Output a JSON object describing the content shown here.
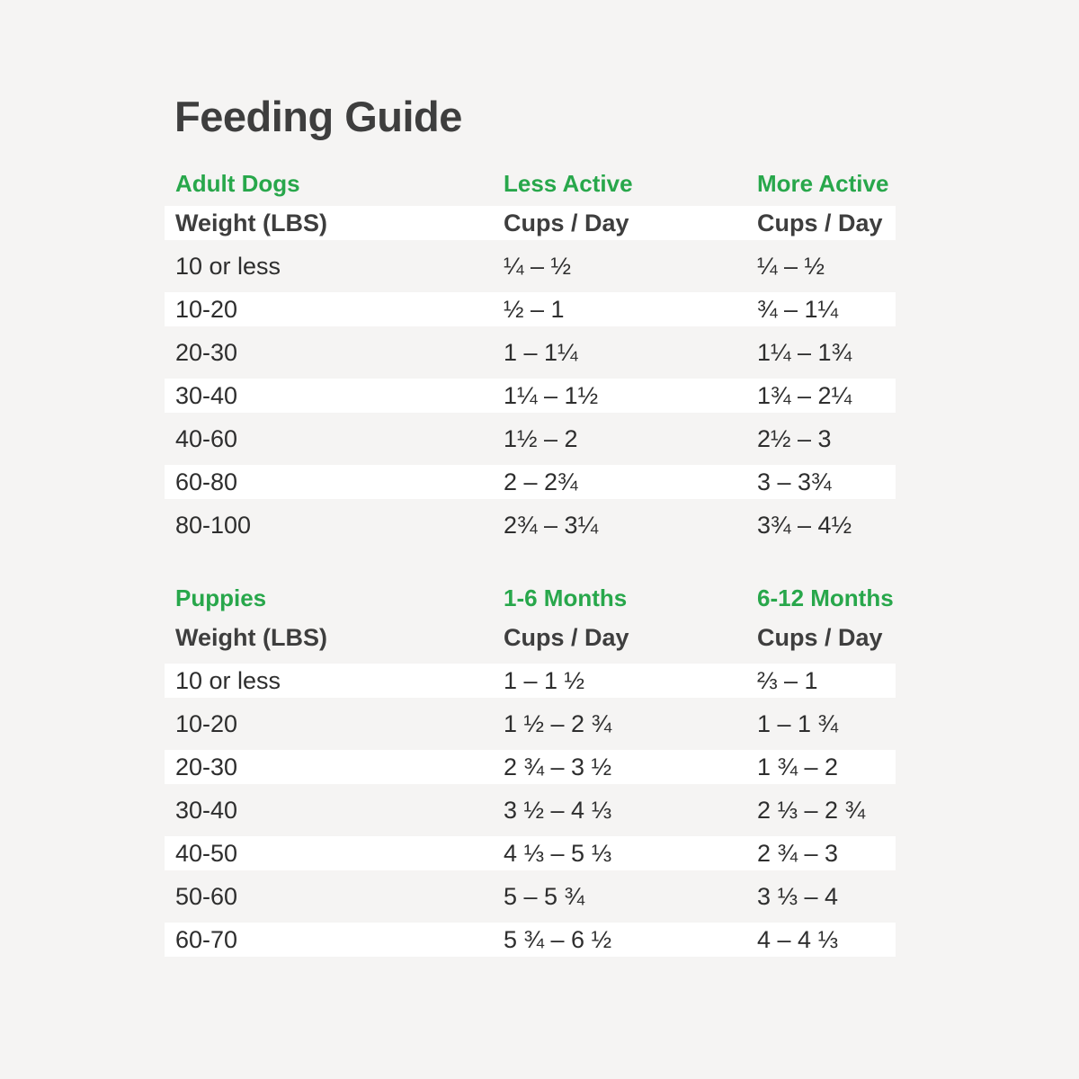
{
  "page": {
    "title": "Feeding Guide"
  },
  "theme": {
    "background": "#f5f4f3",
    "stripe": "#ffffff",
    "accent_green": "#28a74b",
    "title_color": "#3e3e3e",
    "text_color": "#2e2e2e"
  },
  "chart_data": [
    {
      "type": "table",
      "section_title": "Adult Dogs",
      "group_headers": [
        "Adult Dogs",
        "Less Active",
        "More Active"
      ],
      "column_headers": [
        "Weight (LBS)",
        "Cups / Day",
        "Cups / Day"
      ],
      "header_row_striped": true,
      "rows": [
        [
          "10 or less",
          "¼ – ½",
          "¼ – ½"
        ],
        [
          "10-20",
          "½ – 1",
          "¾ – 1¼"
        ],
        [
          "20-30",
          "1 – 1¼",
          "1¼ – 1¾"
        ],
        [
          "30-40",
          "1¼ – 1½",
          "1¾ – 2¼"
        ],
        [
          "40-60",
          "1½ – 2",
          "2½ – 3"
        ],
        [
          "60-80",
          "2 – 2¾",
          "3 – 3¾"
        ],
        [
          "80-100",
          "2¾ – 3¼",
          "3¾ – 4½"
        ]
      ]
    },
    {
      "type": "table",
      "section_title": "Puppies",
      "group_headers": [
        "Puppies",
        "1-6 Months",
        "6-12 Months"
      ],
      "column_headers": [
        "Weight (LBS)",
        "Cups / Day",
        "Cups / Day"
      ],
      "header_row_striped": false,
      "rows": [
        [
          "10 or less",
          "1 – 1 ½",
          "⅔ – 1"
        ],
        [
          "10-20",
          "1 ½ – 2 ¾",
          "1 – 1 ¾"
        ],
        [
          "20-30",
          "2 ¾ – 3 ½",
          "1 ¾ – 2"
        ],
        [
          "30-40",
          "3 ½ – 4 ⅓",
          "2 ⅓ – 2 ¾"
        ],
        [
          "40-50",
          "4 ⅓ – 5 ⅓",
          "2 ¾ – 3"
        ],
        [
          "50-60",
          "5 – 5 ¾",
          "3 ⅓ – 4"
        ],
        [
          "60-70",
          "5 ¾ – 6 ½",
          "4 – 4 ⅓"
        ]
      ]
    }
  ]
}
